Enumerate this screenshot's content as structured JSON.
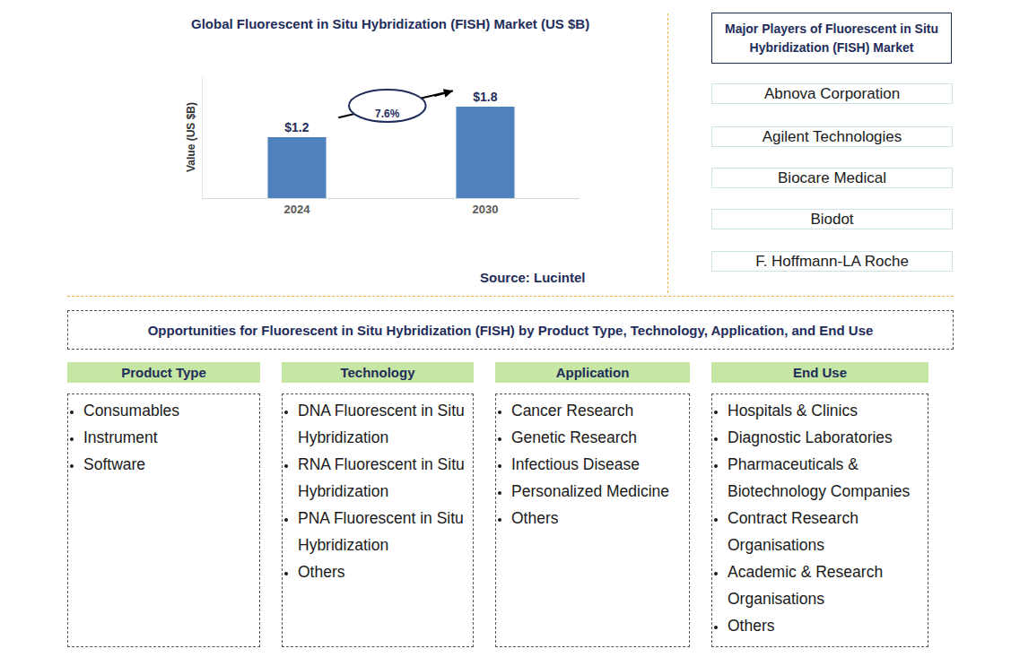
{
  "chart_data": {
    "type": "bar",
    "title": "Global Fluorescent in Situ Hybridization (FISH) Market (US $B)",
    "ylabel": "Value (US $B)",
    "categories": [
      "2024",
      "2030"
    ],
    "values": [
      1.2,
      1.8
    ],
    "value_labels": [
      "$1.2",
      "$1.8"
    ],
    "color": "#4f81bd",
    "ylim": [
      0,
      2.4
    ],
    "yticks": [],
    "grid": false,
    "data_labels": true,
    "tick_labels": "x",
    "annotations": [
      "7.6%"
    ],
    "source": "Source: Lucintel"
  },
  "players": {
    "title": "Major Players of Fluorescent in Situ Hybridization (FISH) Market",
    "items": [
      "Abnova Corporation",
      "Agilent Technologies",
      "Biocare Medical",
      "Biodot",
      "F. Hoffmann-LA Roche"
    ]
  },
  "opportunities": {
    "title": "Opportunities for Fluorescent in Situ Hybridization (FISH) by Product Type, Technology, Application, and End Use",
    "segments": [
      {
        "title": "Product Type",
        "items": [
          "Consumables",
          "Instrument",
          "Software"
        ]
      },
      {
        "title": "Technology",
        "items": [
          "DNA Fluorescent in Situ Hybridization",
          "RNA Fluorescent in Situ Hybridization",
          "PNA Fluorescent in Situ Hybridization",
          "Others"
        ]
      },
      {
        "title": "Application",
        "items": [
          "Cancer Research",
          "Genetic Research",
          "Infectious Disease",
          "Personalized Medicine",
          "Others"
        ]
      },
      {
        "title": "End Use",
        "items": [
          "Hospitals & Clinics",
          "Diagnostic Laboratories",
          "Pharmaceuticals & Biotechnology Companies",
          "Contract Research Organisations",
          "Academic & Research Organisations",
          "Others"
        ]
      }
    ]
  }
}
